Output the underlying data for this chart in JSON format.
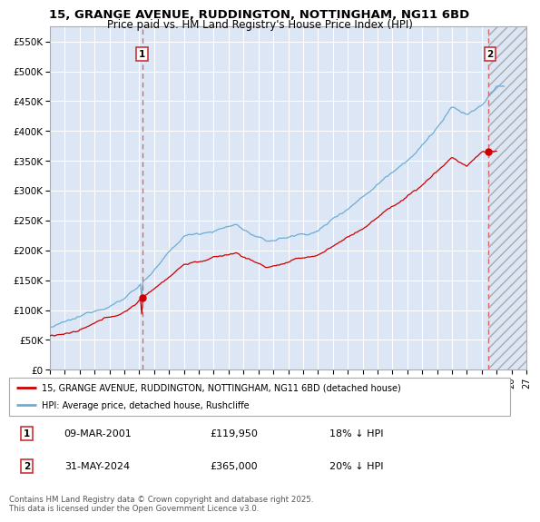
{
  "title_line1": "15, GRANGE AVENUE, RUDDINGTON, NOTTINGHAM, NG11 6BD",
  "title_line2": "Price paid vs. HM Land Registry's House Price Index (HPI)",
  "ylim": [
    0,
    575000
  ],
  "yticks": [
    0,
    50000,
    100000,
    150000,
    200000,
    250000,
    300000,
    350000,
    400000,
    450000,
    500000,
    550000
  ],
  "ytick_labels": [
    "£0",
    "£50K",
    "£100K",
    "£150K",
    "£200K",
    "£250K",
    "£300K",
    "£350K",
    "£400K",
    "£450K",
    "£500K",
    "£550K"
  ],
  "x_start_year": 1995,
  "x_end_year": 2027,
  "sale1_date": 2001.19,
  "sale1_price": 119950,
  "sale1_label": "1",
  "sale2_date": 2024.42,
  "sale2_price": 365000,
  "sale2_label": "2",
  "background_color": "#ffffff",
  "plot_bg_color": "#dce6f5",
  "grid_color": "#ffffff",
  "hpi_line_color": "#6baed6",
  "price_line_color": "#cc0000",
  "vline_color": "#e88080",
  "hatch_color": "#bbbbbb",
  "legend_label1": "15, GRANGE AVENUE, RUDDINGTON, NOTTINGHAM, NG11 6BD (detached house)",
  "legend_label2": "HPI: Average price, detached house, Rushcliffe",
  "annotation1_date": "09-MAR-2001",
  "annotation1_price": "£119,950",
  "annotation1_hpi": "18% ↓ HPI",
  "annotation2_date": "31-MAY-2024",
  "annotation2_price": "£365,000",
  "annotation2_hpi": "20% ↓ HPI",
  "footer": "Contains HM Land Registry data © Crown copyright and database right 2025.\nThis data is licensed under the Open Government Licence v3.0."
}
